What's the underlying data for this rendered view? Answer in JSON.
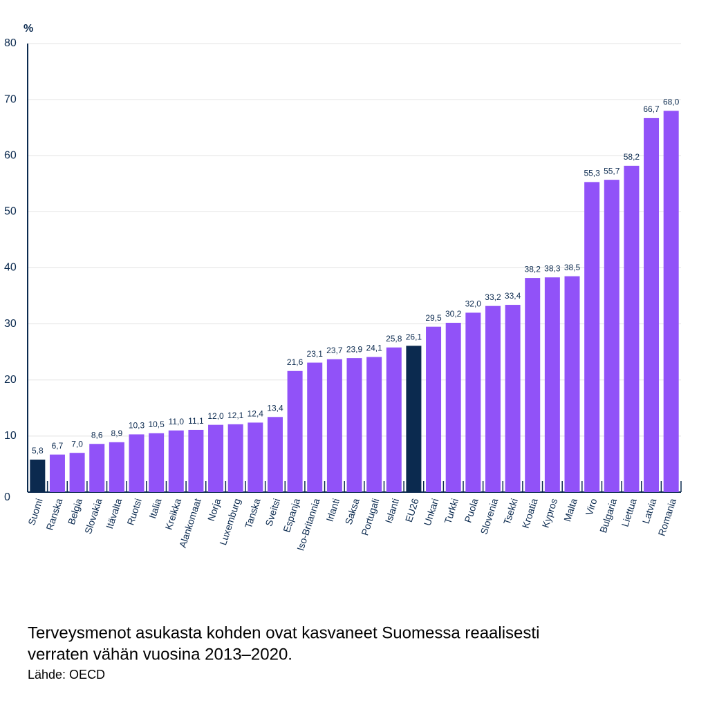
{
  "chart_data": {
    "type": "bar",
    "y_unit": "%",
    "categories": [
      "Suomi",
      "Ranska",
      "Belgia",
      "Slovakia",
      "Itävalta",
      "Ruotsi",
      "Italia",
      "Kreikka",
      "Alankomaat",
      "Norja",
      "Luxemburg",
      "Tanska",
      "Sveitsi",
      "Espanja",
      "Iso-Britannia",
      "Irlanti",
      "Saksa",
      "Portugali",
      "Islanti",
      "EU26",
      "Unkari",
      "Turkki",
      "Puola",
      "Slovenia",
      "Tsekki",
      "Kroatia",
      "Kypros",
      "Malta",
      "Viro",
      "Bulgaria",
      "Liettua",
      "Latvia",
      "Romania"
    ],
    "values": [
      5.8,
      6.7,
      7.0,
      8.6,
      8.9,
      10.3,
      10.5,
      11.0,
      11.1,
      12.0,
      12.1,
      12.4,
      13.4,
      21.6,
      23.1,
      23.7,
      23.9,
      24.1,
      25.8,
      26.1,
      29.5,
      30.2,
      32.0,
      33.2,
      33.4,
      38.2,
      38.3,
      38.5,
      55.3,
      55.7,
      58.2,
      66.7,
      68.0
    ],
    "value_labels": [
      "5,8",
      "6,7",
      "7,0",
      "8,6",
      "8,9",
      "10,3",
      "10,5",
      "11,0",
      "11,1",
      "12,0",
      "12,1",
      "12,4",
      "13,4",
      "21,6",
      "23,1",
      "23,7",
      "23,9",
      "24,1",
      "25,8",
      "26,1",
      "29,5",
      "30,2",
      "32,0",
      "33,2",
      "33,4",
      "38,2",
      "38,3",
      "38,5",
      "55,3",
      "55,7",
      "58,2",
      "66,7",
      "68,0"
    ],
    "colors": [
      "#0b2a4f",
      "#9152f8",
      "#9152f8",
      "#9152f8",
      "#9152f8",
      "#9152f8",
      "#9152f8",
      "#9152f8",
      "#9152f8",
      "#9152f8",
      "#9152f8",
      "#9152f8",
      "#9152f8",
      "#9152f8",
      "#9152f8",
      "#9152f8",
      "#9152f8",
      "#9152f8",
      "#9152f8",
      "#0b2a4f",
      "#9152f8",
      "#9152f8",
      "#9152f8",
      "#9152f8",
      "#9152f8",
      "#9152f8",
      "#9152f8",
      "#9152f8",
      "#9152f8",
      "#9152f8",
      "#9152f8",
      "#9152f8",
      "#9152f8"
    ],
    "ylim": [
      0,
      80
    ],
    "yticks": [
      0,
      10,
      20,
      30,
      40,
      50,
      60,
      70,
      80
    ],
    "grid": true,
    "caption": [
      "Terveysmenot asukasta kohden ovat kasvaneet Suomessa reaalisesti",
      "verraten vähän vuosina 2013–2020."
    ],
    "source": "Lähde: OECD"
  }
}
